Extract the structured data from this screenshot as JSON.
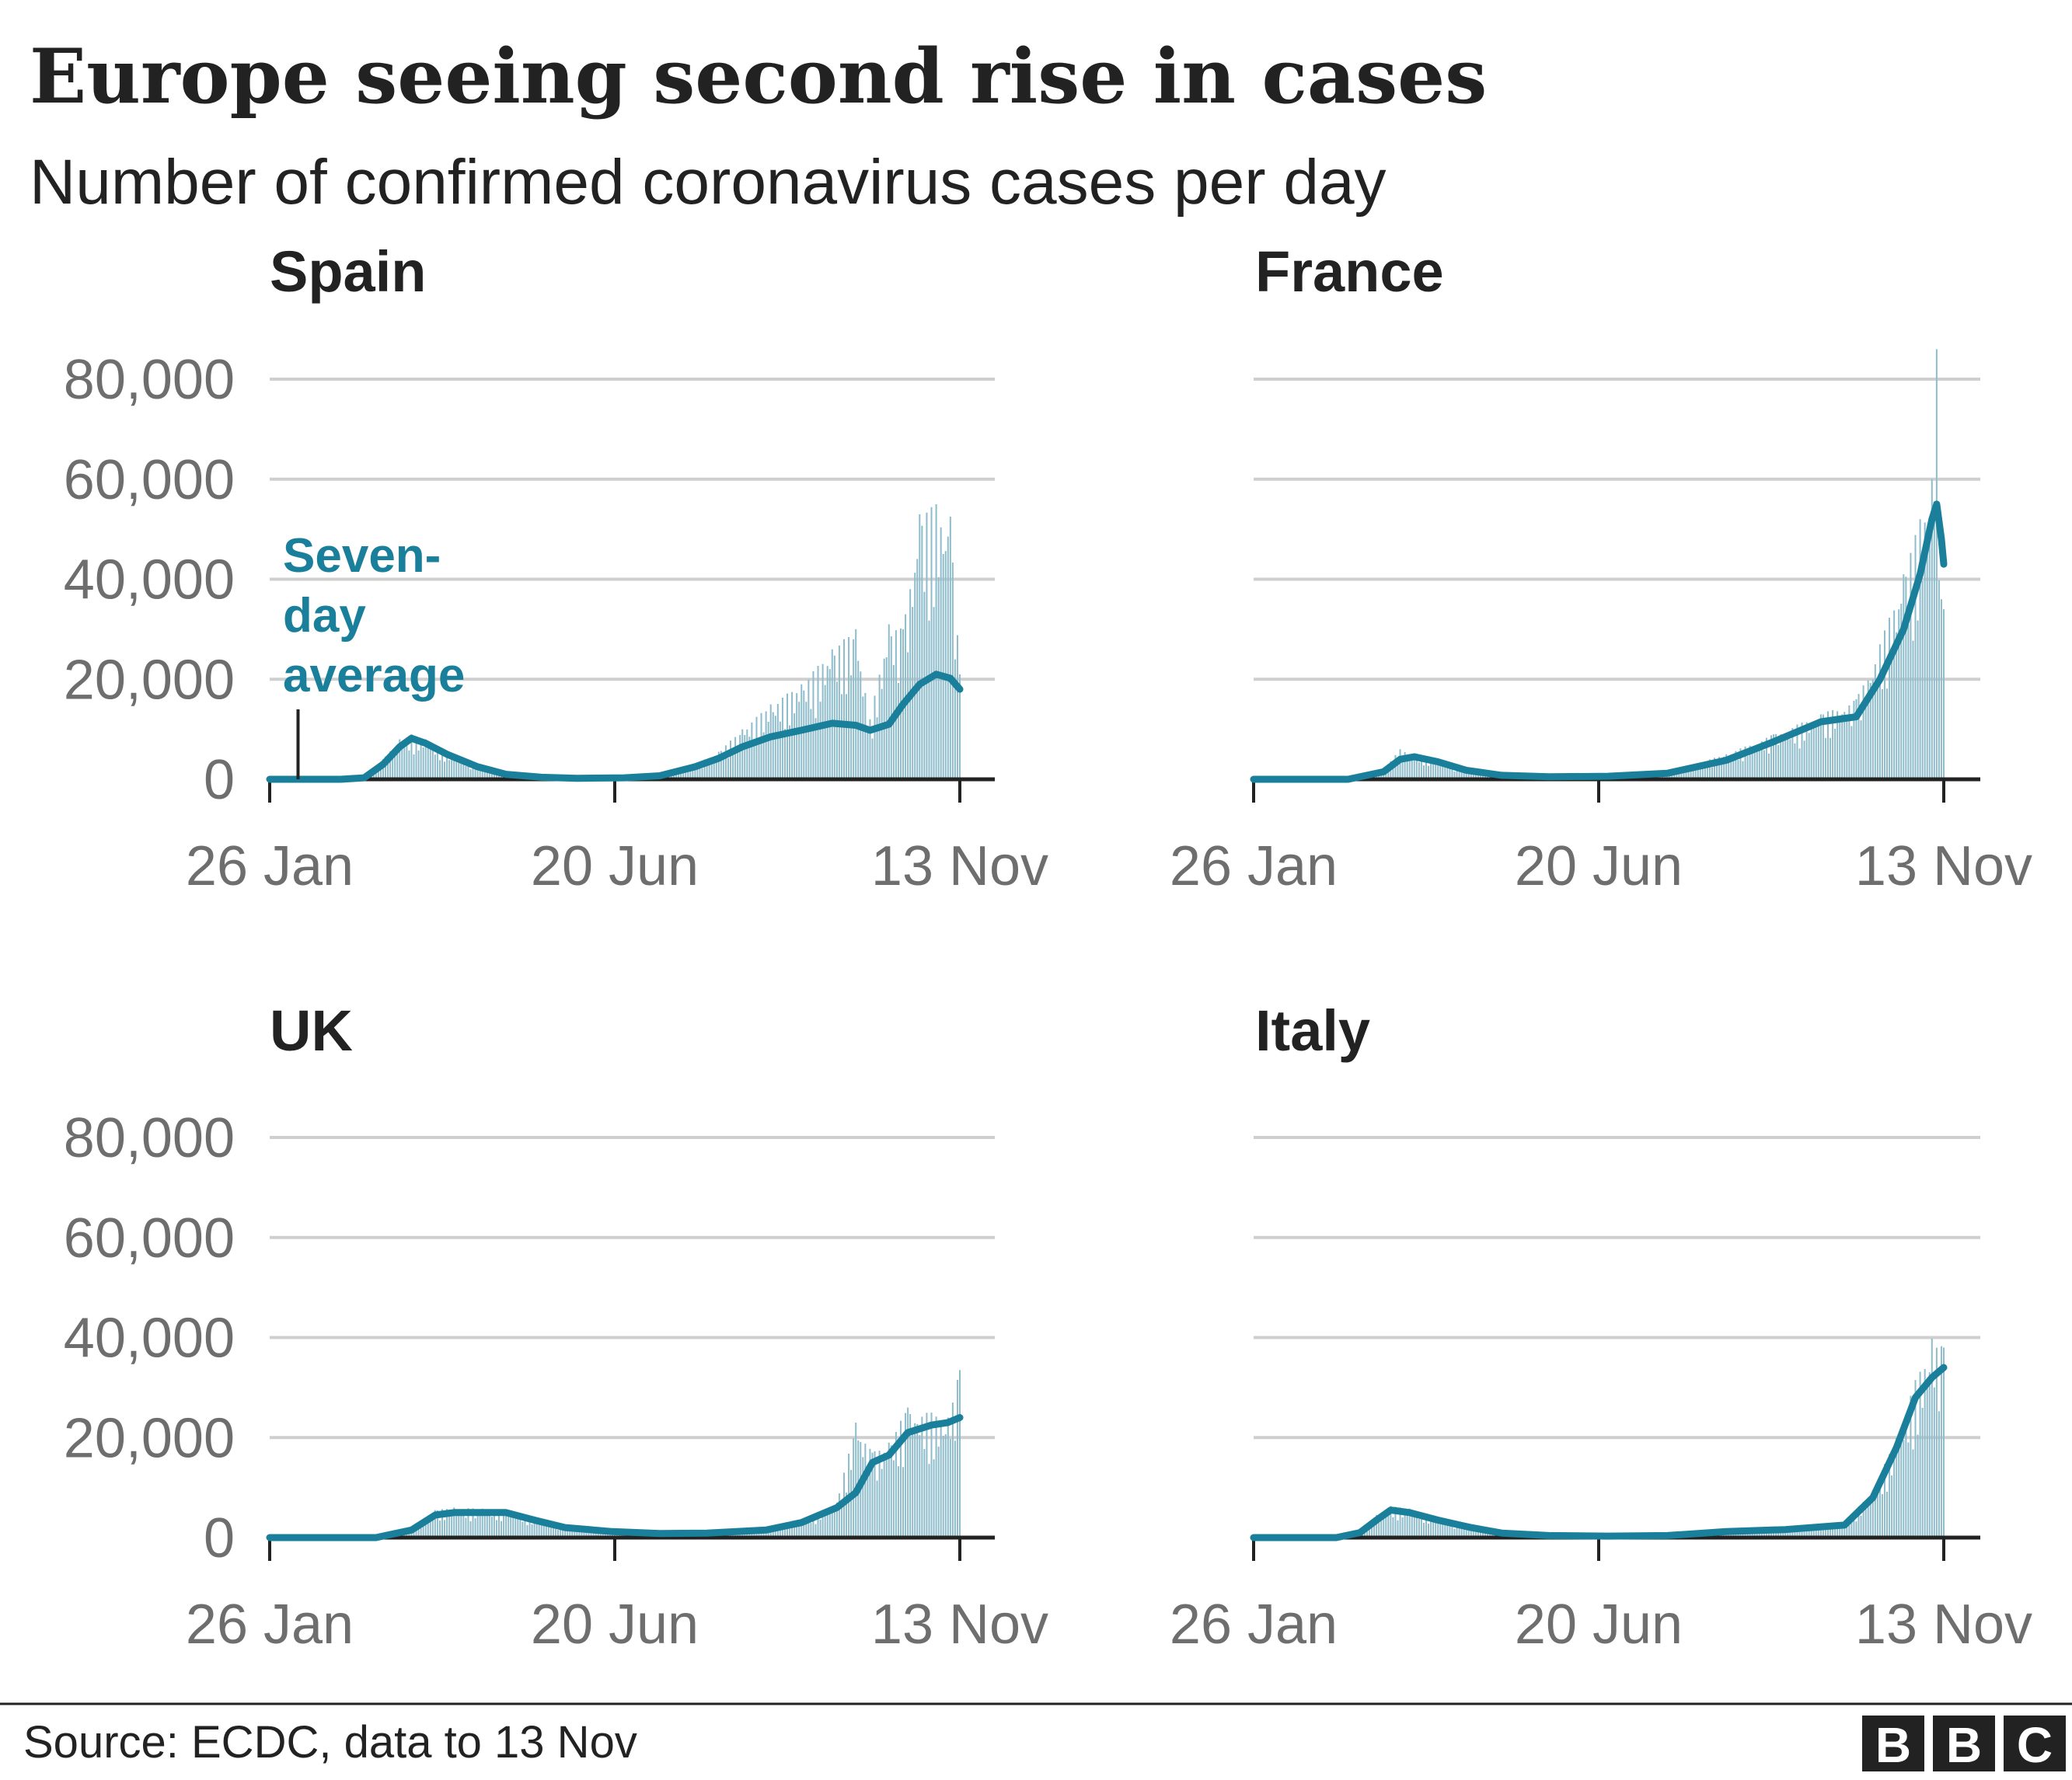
{
  "title": "Europe seeing second rise in cases",
  "subtitle": "Number of confirmed coronavirus cases per day",
  "source": "Source: ECDC, data to 13 Nov",
  "logo": {
    "letters": [
      "B",
      "B",
      "C"
    ]
  },
  "colors": {
    "average_line": "#1a7f9a",
    "bars": "#8fbccb",
    "grid": "#cfcfcf",
    "text": "#222222",
    "ticks": "#6e6e6e"
  },
  "annotation": {
    "lines": [
      "Seven-",
      "day",
      "average"
    ],
    "panel": "Spain",
    "pointer_x_day": 12
  },
  "chart_data": [
    {
      "type": "bar+line",
      "title": "Spain",
      "x_start": "26 Jan",
      "x_end_day": 292,
      "xticks": [
        {
          "day": 0,
          "label": "26 Jan"
        },
        {
          "day": 146,
          "label": "20 Jun"
        },
        {
          "day": 292,
          "label": "13 Nov"
        }
      ],
      "yticks": [
        {
          "value": 0,
          "label": "0"
        },
        {
          "value": 20000,
          "label": "20,000"
        },
        {
          "value": 40000,
          "label": "40,000"
        },
        {
          "value": 60000,
          "label": "60,000"
        },
        {
          "value": 80000,
          "label": "80,000"
        }
      ],
      "ylim": [
        0,
        80000
      ],
      "series": [
        {
          "name": "Seven-day average",
          "type": "line",
          "points": [
            [
              0,
              0
            ],
            [
              30,
              0
            ],
            [
              40,
              300
            ],
            [
              48,
              3000
            ],
            [
              55,
              6500
            ],
            [
              60,
              8200
            ],
            [
              66,
              7200
            ],
            [
              75,
              5000
            ],
            [
              88,
              2500
            ],
            [
              100,
              1000
            ],
            [
              115,
              400
            ],
            [
              130,
              200
            ],
            [
              150,
              300
            ],
            [
              165,
              700
            ],
            [
              180,
              2500
            ],
            [
              190,
              4200
            ],
            [
              200,
              6500
            ],
            [
              212,
              8500
            ],
            [
              225,
              9800
            ],
            [
              238,
              11200
            ],
            [
              248,
              10800
            ],
            [
              254,
              9800
            ],
            [
              262,
              11000
            ],
            [
              268,
              15000
            ],
            [
              275,
              19000
            ],
            [
              282,
              21000
            ],
            [
              288,
              20200
            ],
            [
              292,
              18000
            ]
          ]
        },
        {
          "name": "Daily cases",
          "type": "bar",
          "points": [
            [
              0,
              0
            ],
            [
              30,
              0
            ],
            [
              40,
              400
            ],
            [
              48,
              4000
            ],
            [
              55,
              8000
            ],
            [
              60,
              9000
            ],
            [
              66,
              8000
            ],
            [
              75,
              5500
            ],
            [
              88,
              3000
            ],
            [
              100,
              1200
            ],
            [
              115,
              500
            ],
            [
              130,
              300
            ],
            [
              150,
              400
            ],
            [
              165,
              900
            ],
            [
              180,
              3000
            ],
            [
              190,
              5500
            ],
            [
              200,
              10000
            ],
            [
              212,
              15000
            ],
            [
              225,
              19000
            ],
            [
              238,
              26000
            ],
            [
              248,
              30000
            ],
            [
              254,
              12000
            ],
            [
              262,
              31000
            ],
            [
              268,
              30000
            ],
            [
              275,
              53000
            ],
            [
              282,
              55000
            ],
            [
              288,
              52500
            ],
            [
              292,
              21000
            ]
          ]
        }
      ]
    },
    {
      "type": "bar+line",
      "title": "France",
      "x_start": "26 Jan",
      "x_end_day": 292,
      "xticks": [
        {
          "day": 0,
          "label": "26 Jan"
        },
        {
          "day": 146,
          "label": "20 Jun"
        },
        {
          "day": 292,
          "label": "13 Nov"
        }
      ],
      "yticks": [
        {
          "value": 0,
          "label": "0"
        },
        {
          "value": 20000,
          "label": "20,000"
        },
        {
          "value": 40000,
          "label": "40,000"
        },
        {
          "value": 60000,
          "label": "60,000"
        },
        {
          "value": 80000,
          "label": "80,000"
        }
      ],
      "ylim": [
        0,
        80000
      ],
      "series": [
        {
          "name": "Seven-day average",
          "type": "line",
          "points": [
            [
              0,
              0
            ],
            [
              40,
              0
            ],
            [
              55,
              1500
            ],
            [
              62,
              4000
            ],
            [
              68,
              4500
            ],
            [
              78,
              3500
            ],
            [
              90,
              1800
            ],
            [
              105,
              800
            ],
            [
              125,
              500
            ],
            [
              150,
              600
            ],
            [
              175,
              1200
            ],
            [
              200,
              3800
            ],
            [
              220,
              7500
            ],
            [
              240,
              11500
            ],
            [
              255,
              12500
            ],
            [
              265,
              20000
            ],
            [
              275,
              30000
            ],
            [
              282,
              41000
            ],
            [
              287,
              52000
            ],
            [
              289,
              55000
            ],
            [
              291,
              48000
            ],
            [
              292,
              43000
            ]
          ]
        },
        {
          "name": "Daily cases",
          "type": "bar",
          "points": [
            [
              0,
              0
            ],
            [
              40,
              0
            ],
            [
              55,
              2000
            ],
            [
              62,
              6000
            ],
            [
              68,
              5000
            ],
            [
              78,
              4000
            ],
            [
              90,
              2000
            ],
            [
              105,
              1000
            ],
            [
              125,
              600
            ],
            [
              150,
              700
            ],
            [
              175,
              1500
            ],
            [
              200,
              5000
            ],
            [
              220,
              9000
            ],
            [
              240,
              13000
            ],
            [
              255,
              16000
            ],
            [
              265,
              27000
            ],
            [
              275,
              41000
            ],
            [
              282,
              52000
            ],
            [
              287,
              60000
            ],
            [
              289,
              86000
            ],
            [
              291,
              36000
            ],
            [
              292,
              34000
            ]
          ]
        }
      ]
    },
    {
      "type": "bar+line",
      "title": "UK",
      "x_start": "26 Jan",
      "x_end_day": 292,
      "xticks": [
        {
          "day": 0,
          "label": "26 Jan"
        },
        {
          "day": 146,
          "label": "20 Jun"
        },
        {
          "day": 292,
          "label": "13 Nov"
        }
      ],
      "yticks": [
        {
          "value": 0,
          "label": "0"
        },
        {
          "value": 20000,
          "label": "20,000"
        },
        {
          "value": 40000,
          "label": "40,000"
        },
        {
          "value": 60000,
          "label": "60,000"
        },
        {
          "value": 80000,
          "label": "80,000"
        }
      ],
      "ylim": [
        0,
        80000
      ],
      "series": [
        {
          "name": "Seven-day average",
          "type": "line",
          "points": [
            [
              0,
              0
            ],
            [
              45,
              0
            ],
            [
              60,
              1500
            ],
            [
              70,
              4500
            ],
            [
              78,
              5000
            ],
            [
              90,
              5000
            ],
            [
              100,
              5000
            ],
            [
              112,
              3500
            ],
            [
              125,
              2000
            ],
            [
              145,
              1200
            ],
            [
              165,
              800
            ],
            [
              185,
              900
            ],
            [
              210,
              1500
            ],
            [
              225,
              3000
            ],
            [
              240,
              6000
            ],
            [
              248,
              9000
            ],
            [
              255,
              15000
            ],
            [
              262,
              16500
            ],
            [
              270,
              21000
            ],
            [
              280,
              22500
            ],
            [
              287,
              23000
            ],
            [
              292,
              24000
            ]
          ]
        },
        {
          "name": "Daily cases",
          "type": "bar",
          "points": [
            [
              0,
              0
            ],
            [
              45,
              0
            ],
            [
              60,
              2000
            ],
            [
              70,
              5500
            ],
            [
              78,
              6000
            ],
            [
              90,
              5800
            ],
            [
              100,
              5500
            ],
            [
              112,
              4000
            ],
            [
              125,
              2300
            ],
            [
              145,
              1400
            ],
            [
              165,
              1000
            ],
            [
              185,
              1100
            ],
            [
              210,
              1800
            ],
            [
              225,
              3500
            ],
            [
              240,
              7000
            ],
            [
              248,
              23000
            ],
            [
              255,
              17000
            ],
            [
              262,
              19000
            ],
            [
              270,
              26000
            ],
            [
              280,
              25000
            ],
            [
              287,
              24000
            ],
            [
              292,
              33500
            ]
          ]
        }
      ]
    },
    {
      "type": "bar+line",
      "title": "Italy",
      "x_start": "26 Jan",
      "x_end_day": 292,
      "xticks": [
        {
          "day": 0,
          "label": "26 Jan"
        },
        {
          "day": 146,
          "label": "20 Jun"
        },
        {
          "day": 292,
          "label": "13 Nov"
        }
      ],
      "yticks": [
        {
          "value": 0,
          "label": "0"
        },
        {
          "value": 20000,
          "label": "20,000"
        },
        {
          "value": 40000,
          "label": "40,000"
        },
        {
          "value": 60000,
          "label": "60,000"
        },
        {
          "value": 80000,
          "label": "80,000"
        }
      ],
      "ylim": [
        0,
        80000
      ],
      "series": [
        {
          "name": "Seven-day average",
          "type": "line",
          "points": [
            [
              0,
              0
            ],
            [
              35,
              0
            ],
            [
              45,
              1000
            ],
            [
              52,
              3500
            ],
            [
              58,
              5500
            ],
            [
              66,
              5000
            ],
            [
              78,
              3500
            ],
            [
              92,
              2000
            ],
            [
              105,
              900
            ],
            [
              125,
              400
            ],
            [
              150,
              300
            ],
            [
              175,
              400
            ],
            [
              200,
              1200
            ],
            [
              225,
              1600
            ],
            [
              250,
              2500
            ],
            [
              262,
              8000
            ],
            [
              272,
              18000
            ],
            [
              280,
              28000
            ],
            [
              287,
              32000
            ],
            [
              292,
              34000
            ]
          ]
        },
        {
          "name": "Daily cases",
          "type": "bar",
          "points": [
            [
              0,
              0
            ],
            [
              35,
              0
            ],
            [
              45,
              1300
            ],
            [
              52,
              4500
            ],
            [
              58,
              6300
            ],
            [
              66,
              5800
            ],
            [
              78,
              4000
            ],
            [
              92,
              2400
            ],
            [
              105,
              1200
            ],
            [
              125,
              500
            ],
            [
              150,
              400
            ],
            [
              175,
              500
            ],
            [
              200,
              1400
            ],
            [
              225,
              1900
            ],
            [
              250,
              3000
            ],
            [
              262,
              9500
            ],
            [
              272,
              20000
            ],
            [
              280,
              31500
            ],
            [
              287,
              39800
            ],
            [
              292,
              38000
            ]
          ]
        }
      ]
    }
  ]
}
